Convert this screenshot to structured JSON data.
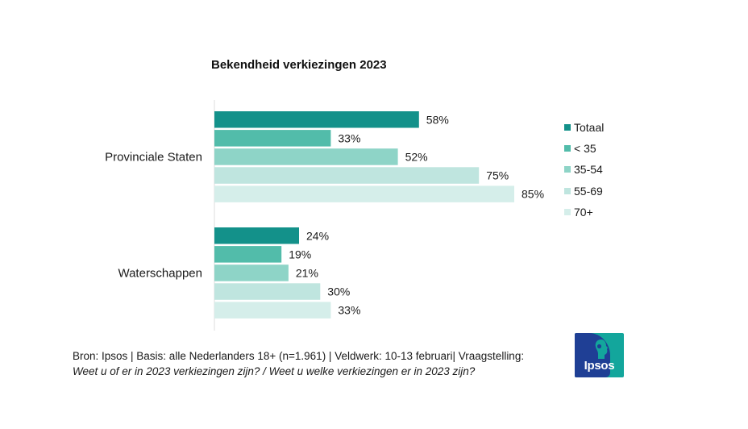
{
  "chart_data": {
    "type": "bar",
    "orientation": "horizontal",
    "title": "Bekendheid verkiezingen 2023",
    "categories": [
      "Provinciale Staten",
      "Waterschappen"
    ],
    "series": [
      {
        "name": "Totaal",
        "color": "#13918a",
        "values": [
          58,
          24
        ],
        "labels": [
          "58%",
          "24%"
        ]
      },
      {
        "name": "< 35",
        "color": "#52bcaa",
        "values": [
          33,
          19
        ],
        "labels": [
          "33%",
          "19%"
        ]
      },
      {
        "name": "35-54",
        "color": "#8ed4c7",
        "values": [
          52,
          21
        ],
        "labels": [
          "52%",
          "21%"
        ]
      },
      {
        "name": "55-69",
        "color": "#bfe5df",
        "values": [
          75,
          30
        ],
        "labels": [
          "75%",
          "30%"
        ]
      },
      {
        "name": "70+",
        "color": "#d5eeea",
        "values": [
          85,
          33
        ],
        "labels": [
          "85%",
          "33%"
        ]
      }
    ],
    "xlim": [
      0,
      85
    ],
    "legend_position": "right",
    "grid": false
  },
  "footer": {
    "source": "Bron: Ipsos | Basis: alle Nederlanders 18+ (n=1.961) | Veldwerk: 10-13 februari| Vraagstelling:",
    "question": "Weet u of er in 2023 verkiezingen zijn? / Weet u welke verkiezingen er in 2023 zijn?"
  },
  "logo": {
    "text": "Ipsos"
  }
}
